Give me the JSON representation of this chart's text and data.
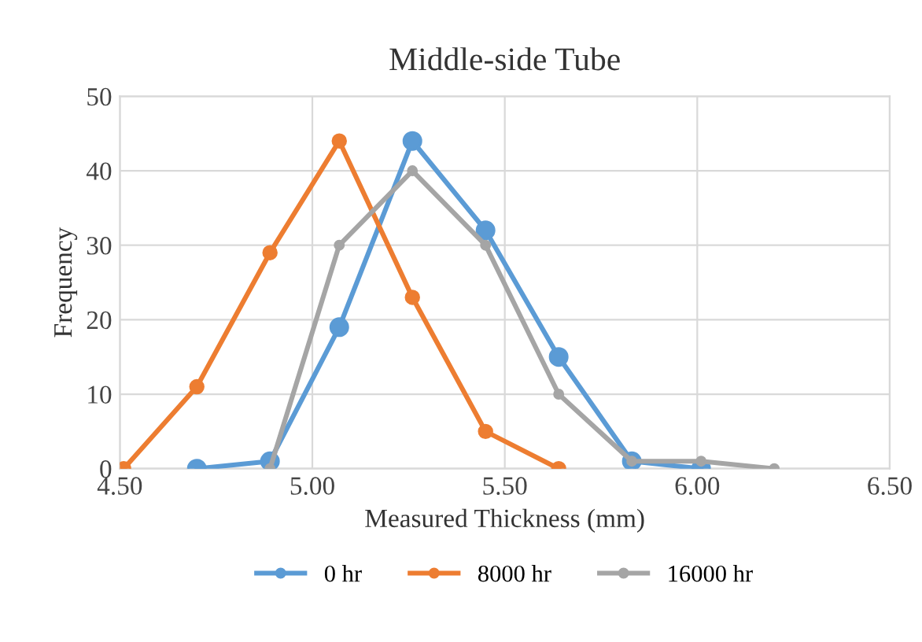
{
  "chart_data": {
    "type": "line",
    "title": "Middle-side Tube",
    "xlabel": "Measured Thickness (mm)",
    "ylabel": "Frequency",
    "xlim": [
      4.5,
      6.5
    ],
    "xticks": [
      {
        "value": 4.5,
        "label": "4.50"
      },
      {
        "value": 5.0,
        "label": "5.00"
      },
      {
        "value": 5.5,
        "label": "5.50"
      },
      {
        "value": 6.0,
        "label": "6.00"
      },
      {
        "value": 6.5,
        "label": "6.50"
      }
    ],
    "ylim": [
      0,
      50
    ],
    "yticks": [
      0,
      10,
      20,
      30,
      40,
      50
    ],
    "grid": true,
    "legend": "bottom",
    "marker": "circle",
    "line_style": "solid",
    "series": [
      {
        "name": "0 hr",
        "color": "#5b9bd5",
        "x": [
          4.7,
          4.89,
          5.07,
          5.26,
          5.45,
          5.64,
          5.83,
          6.01
        ],
        "values": [
          0,
          1,
          19,
          44,
          32,
          15,
          1,
          0
        ]
      },
      {
        "name": "8000 hr",
        "color": "#ed7d31",
        "x": [
          4.51,
          4.7,
          4.89,
          5.07,
          5.26,
          5.45,
          5.64
        ],
        "values": [
          0,
          11,
          29,
          44,
          23,
          5,
          0
        ]
      },
      {
        "name": "16000 hr",
        "color": "#a5a5a5",
        "x": [
          4.89,
          5.07,
          5.26,
          5.45,
          5.64,
          5.83,
          6.01,
          6.2
        ],
        "values": [
          0,
          30,
          40,
          30,
          10,
          1,
          1,
          0
        ]
      }
    ]
  }
}
